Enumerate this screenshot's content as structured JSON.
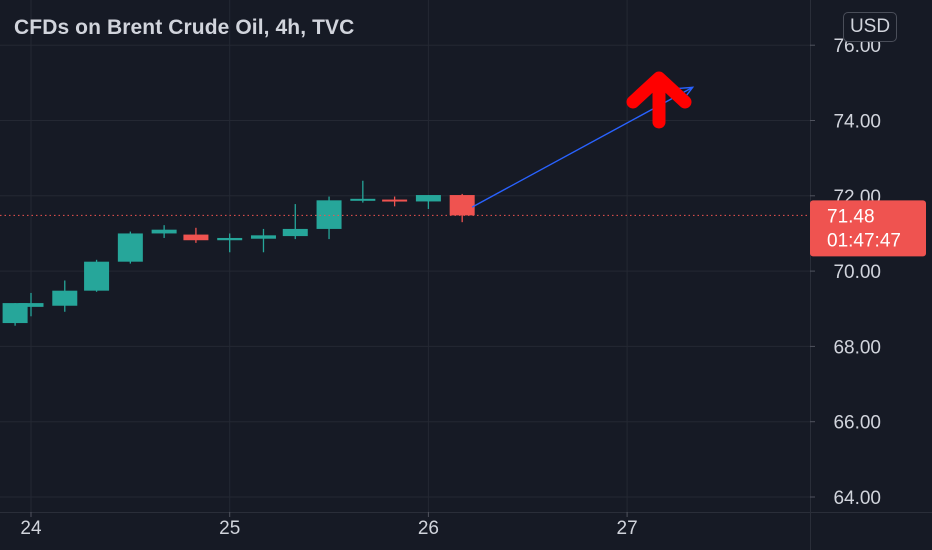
{
  "header": {
    "title": "CFDs on Brent Crude Oil, 4h, TVC",
    "currency": "USD"
  },
  "price_label": {
    "price": "71.48",
    "countdown": "01:47:47"
  },
  "colors": {
    "background": "#161a25",
    "grid": "#242833",
    "up": "#26a69a",
    "down": "#ef5350",
    "text": "#d1d4dc",
    "projection": "#2962ff",
    "arrow": "#ff0000"
  },
  "chart_data": {
    "type": "candlestick",
    "title": "CFDs on Brent Crude Oil, 4h, TVC",
    "x_ticks": [
      "24",
      "25",
      "26",
      "27"
    ],
    "y_ticks": [
      "64.00",
      "66.00",
      "68.00",
      "70.00",
      "72.00",
      "74.00",
      "76.00"
    ],
    "ylim": [
      63.95,
      76.2
    ],
    "last_price": 71.48,
    "candles": [
      {
        "t": 23.92,
        "o": 68.62,
        "h": 69.15,
        "l": 68.55,
        "c": 69.15
      },
      {
        "t": 24.0,
        "o": 69.05,
        "h": 69.42,
        "l": 68.8,
        "c": 69.15
      },
      {
        "t": 24.17,
        "o": 69.08,
        "h": 69.75,
        "l": 68.92,
        "c": 69.48
      },
      {
        "t": 24.33,
        "o": 69.48,
        "h": 70.3,
        "l": 69.45,
        "c": 70.25
      },
      {
        "t": 24.5,
        "o": 70.25,
        "h": 71.05,
        "l": 70.2,
        "c": 71.0
      },
      {
        "t": 24.67,
        "o": 71.0,
        "h": 71.22,
        "l": 70.88,
        "c": 71.1
      },
      {
        "t": 24.83,
        "o": 70.97,
        "h": 71.15,
        "l": 70.75,
        "c": 70.82
      },
      {
        "t": 25.0,
        "o": 70.82,
        "h": 71.0,
        "l": 70.5,
        "c": 70.88
      },
      {
        "t": 25.17,
        "o": 70.86,
        "h": 71.12,
        "l": 70.5,
        "c": 70.95
      },
      {
        "t": 25.33,
        "o": 70.93,
        "h": 71.78,
        "l": 70.85,
        "c": 71.12
      },
      {
        "t": 25.5,
        "o": 71.12,
        "h": 71.98,
        "l": 70.85,
        "c": 71.88
      },
      {
        "t": 25.67,
        "o": 71.88,
        "h": 72.4,
        "l": 71.82,
        "c": 71.92
      },
      {
        "t": 25.83,
        "o": 71.9,
        "h": 71.98,
        "l": 71.72,
        "c": 71.85
      },
      {
        "t": 26.0,
        "o": 71.85,
        "h": 72.02,
        "l": 71.65,
        "c": 72.02
      },
      {
        "t": 26.17,
        "o": 72.02,
        "h": 72.05,
        "l": 71.3,
        "c": 71.48
      }
    ],
    "projection": {
      "from": {
        "t": 26.22,
        "p": 71.7
      },
      "to": {
        "t": 27.33,
        "p": 74.88
      }
    }
  }
}
